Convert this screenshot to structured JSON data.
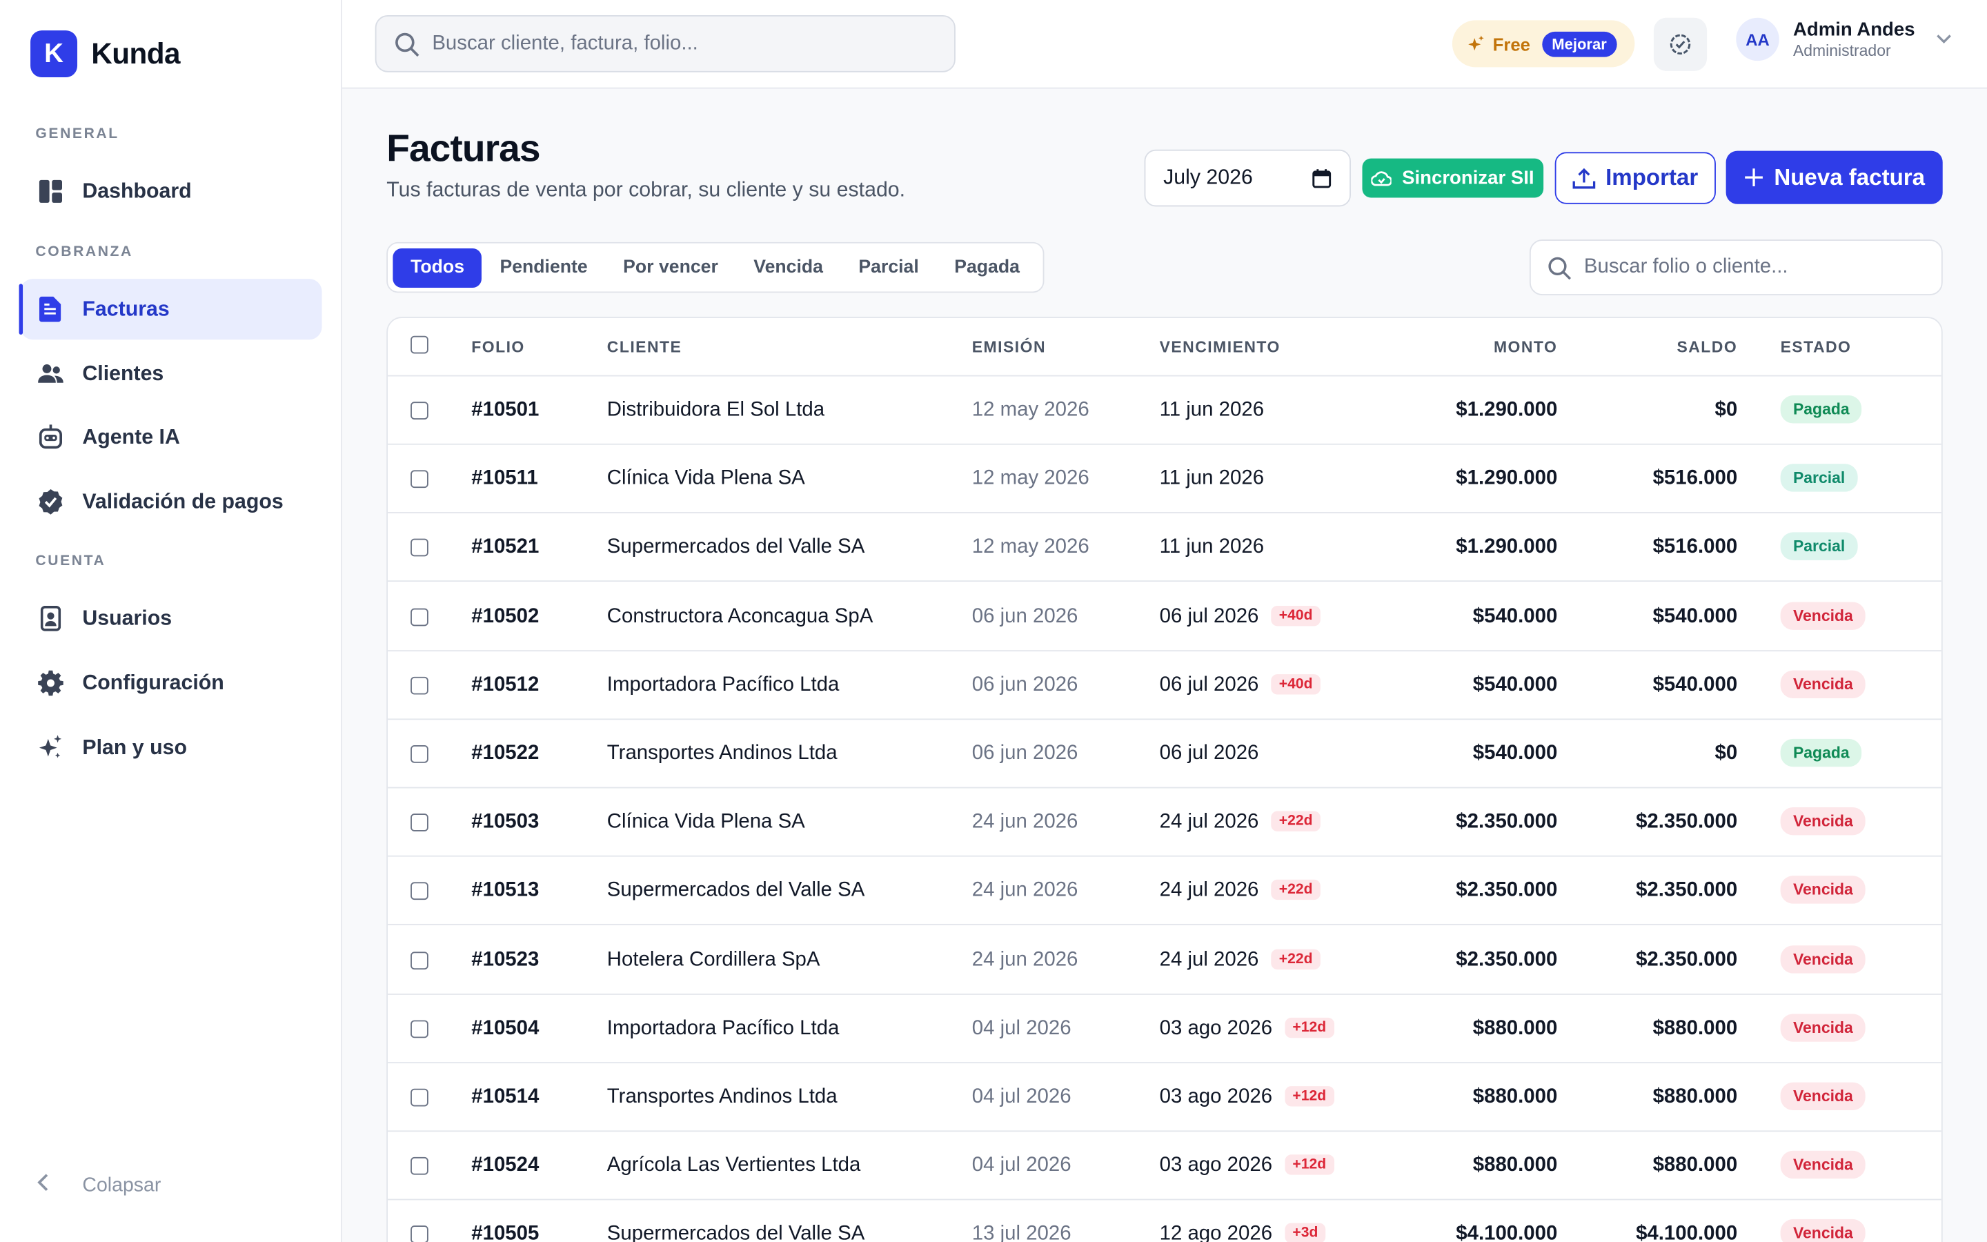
{
  "brand": {
    "logo_letter": "K",
    "name": "Kunda"
  },
  "sidebar": {
    "sections": [
      {
        "label": "GENERAL"
      },
      {
        "label": "COBRANZA"
      },
      {
        "label": "CUENTA"
      }
    ],
    "items": [
      {
        "label": "Dashboard",
        "icon": "dashboard-icon"
      },
      {
        "label": "Facturas",
        "icon": "document-icon",
        "active": true
      },
      {
        "label": "Clientes",
        "icon": "users-icon"
      },
      {
        "label": "Agente IA",
        "icon": "robot-icon"
      },
      {
        "label": "Validación de pagos",
        "icon": "badge-check-icon"
      },
      {
        "label": "Usuarios",
        "icon": "id-card-icon"
      },
      {
        "label": "Configuración",
        "icon": "gear-icon"
      },
      {
        "label": "Plan y uso",
        "icon": "sparkles-icon"
      }
    ],
    "collapse_label": "Colapsar"
  },
  "topbar": {
    "search_placeholder": "Buscar cliente, factura, folio...",
    "plan": {
      "name": "Free",
      "upgrade": "Mejorar"
    },
    "user": {
      "initials": "AA",
      "name": "Admin Andes",
      "role": "Administrador"
    }
  },
  "page": {
    "title": "Facturas",
    "subtitle": "Tus facturas de venta por cobrar, su cliente y su estado.",
    "month": "July 2026",
    "sync_label": "Sincronizar SII",
    "import_label": "Importar",
    "new_label": "Nueva factura",
    "list_search_placeholder": "Buscar folio o cliente..."
  },
  "tabs": [
    "Todos",
    "Pendiente",
    "Por vencer",
    "Vencida",
    "Parcial",
    "Pagada"
  ],
  "table": {
    "columns": {
      "folio": "FOLIO",
      "cliente": "CLIENTE",
      "emision": "EMISIÓN",
      "vencimiento": "VENCIMIENTO",
      "monto": "MONTO",
      "saldo": "SALDO",
      "estado": "ESTADO"
    },
    "rows": [
      {
        "folio": "#10501",
        "cliente": "Distribuidora El Sol Ltda",
        "emision": "12 may 2026",
        "vencimiento": "11 jun 2026",
        "overdue": "",
        "monto": "$1.290.000",
        "saldo": "$0",
        "estado": "Pagada"
      },
      {
        "folio": "#10511",
        "cliente": "Clínica Vida Plena SA",
        "emision": "12 may 2026",
        "vencimiento": "11 jun 2026",
        "overdue": "",
        "monto": "$1.290.000",
        "saldo": "$516.000",
        "estado": "Parcial"
      },
      {
        "folio": "#10521",
        "cliente": "Supermercados del Valle SA",
        "emision": "12 may 2026",
        "vencimiento": "11 jun 2026",
        "overdue": "",
        "monto": "$1.290.000",
        "saldo": "$516.000",
        "estado": "Parcial"
      },
      {
        "folio": "#10502",
        "cliente": "Constructora Aconcagua SpA",
        "emision": "06 jun 2026",
        "vencimiento": "06 jul 2026",
        "overdue": "+40d",
        "monto": "$540.000",
        "saldo": "$540.000",
        "estado": "Vencida"
      },
      {
        "folio": "#10512",
        "cliente": "Importadora Pacífico Ltda",
        "emision": "06 jun 2026",
        "vencimiento": "06 jul 2026",
        "overdue": "+40d",
        "monto": "$540.000",
        "saldo": "$540.000",
        "estado": "Vencida"
      },
      {
        "folio": "#10522",
        "cliente": "Transportes Andinos Ltda",
        "emision": "06 jun 2026",
        "vencimiento": "06 jul 2026",
        "overdue": "",
        "monto": "$540.000",
        "saldo": "$0",
        "estado": "Pagada"
      },
      {
        "folio": "#10503",
        "cliente": "Clínica Vida Plena SA",
        "emision": "24 jun 2026",
        "vencimiento": "24 jul 2026",
        "overdue": "+22d",
        "monto": "$2.350.000",
        "saldo": "$2.350.000",
        "estado": "Vencida"
      },
      {
        "folio": "#10513",
        "cliente": "Supermercados del Valle SA",
        "emision": "24 jun 2026",
        "vencimiento": "24 jul 2026",
        "overdue": "+22d",
        "monto": "$2.350.000",
        "saldo": "$2.350.000",
        "estado": "Vencida"
      },
      {
        "folio": "#10523",
        "cliente": "Hotelera Cordillera SpA",
        "emision": "24 jun 2026",
        "vencimiento": "24 jul 2026",
        "overdue": "+22d",
        "monto": "$2.350.000",
        "saldo": "$2.350.000",
        "estado": "Vencida"
      },
      {
        "folio": "#10504",
        "cliente": "Importadora Pacífico Ltda",
        "emision": "04 jul 2026",
        "vencimiento": "03 ago 2026",
        "overdue": "+12d",
        "monto": "$880.000",
        "saldo": "$880.000",
        "estado": "Vencida"
      },
      {
        "folio": "#10514",
        "cliente": "Transportes Andinos Ltda",
        "emision": "04 jul 2026",
        "vencimiento": "03 ago 2026",
        "overdue": "+12d",
        "monto": "$880.000",
        "saldo": "$880.000",
        "estado": "Vencida"
      },
      {
        "folio": "#10524",
        "cliente": "Agrícola Las Vertientes Ltda",
        "emision": "04 jul 2026",
        "vencimiento": "03 ago 2026",
        "overdue": "+12d",
        "monto": "$880.000",
        "saldo": "$880.000",
        "estado": "Vencida"
      },
      {
        "folio": "#10505",
        "cliente": "Supermercados del Valle SA",
        "emision": "13 jul 2026",
        "vencimiento": "12 ago 2026",
        "overdue": "+3d",
        "monto": "$4.100.000",
        "saldo": "$4.100.000",
        "estado": "Vencida"
      }
    ]
  },
  "colors": {
    "primary": "#2f3de8",
    "success": "#16b983",
    "danger": "#dc2637",
    "warning_bg": "#fdf3dc"
  }
}
